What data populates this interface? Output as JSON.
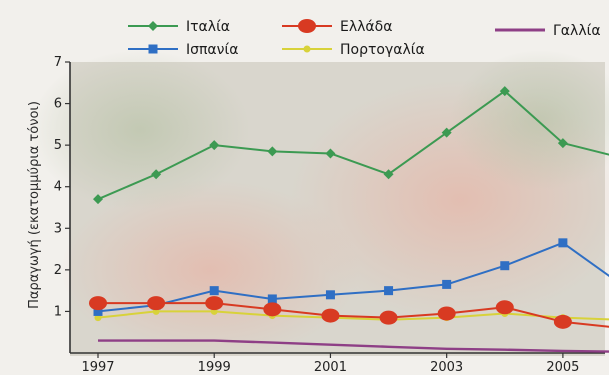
{
  "chart_data": {
    "type": "line",
    "title": "",
    "xlabel": "",
    "ylabel": "Παραγωγή (εκατομμύρια τόνοι)",
    "x": [
      1997,
      1998,
      1999,
      2000,
      2001,
      2002,
      2003,
      2004,
      2005,
      2006
    ],
    "x_tick_labels": [
      "1997",
      "1999",
      "2001",
      "2003",
      "2005"
    ],
    "y_tick_labels": [
      "1",
      "2",
      "3",
      "4",
      "5",
      "6",
      "7"
    ],
    "xlim": [
      1997,
      2006
    ],
    "ylim": [
      0,
      7
    ],
    "grid": false,
    "legend_position": "top",
    "series": [
      {
        "name": "Ιταλία",
        "color": "#3c9a52",
        "marker": "diamond",
        "values": [
          3.7,
          4.3,
          5.0,
          4.85,
          4.8,
          4.3,
          5.3,
          6.3,
          5.05,
          4.7
        ]
      },
      {
        "name": "Ελλάδα",
        "color": "#d83a22",
        "marker": "circle",
        "values": [
          1.2,
          1.2,
          1.2,
          1.05,
          0.9,
          0.85,
          0.95,
          1.1,
          0.75,
          0.6
        ]
      },
      {
        "name": "Γαλλία",
        "color": "#8e3f86",
        "marker": "line",
        "values": [
          0.3,
          0.3,
          0.3,
          0.25,
          0.2,
          0.15,
          0.1,
          0.08,
          0.05,
          0.03
        ]
      },
      {
        "name": "Ισπανία",
        "color": "#2f6fc4",
        "marker": "square",
        "values": [
          1.0,
          1.15,
          1.5,
          1.3,
          1.4,
          1.5,
          1.65,
          2.1,
          2.65,
          1.65
        ]
      },
      {
        "name": "Πορτογαλία",
        "color": "#d8d23a",
        "marker": "star",
        "values": [
          0.85,
          1.0,
          1.0,
          0.9,
          0.85,
          0.8,
          0.85,
          0.95,
          0.85,
          0.8
        ]
      }
    ]
  }
}
